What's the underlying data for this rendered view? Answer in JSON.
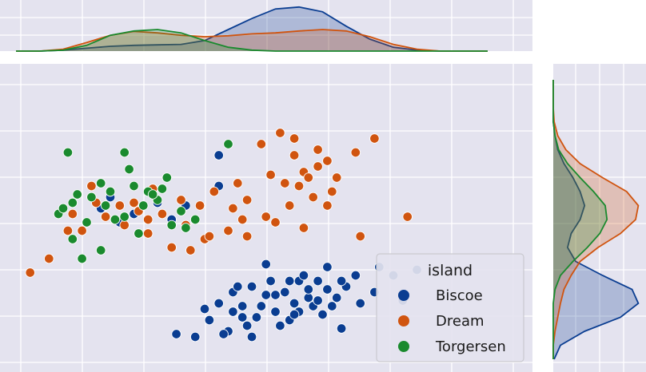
{
  "chart_data": {
    "type": "scatter",
    "kind": "jointplot",
    "title": "",
    "xlabel": "",
    "ylabel": "",
    "xlim": [
      0.0,
      10.0
    ],
    "ylim": [
      0.0,
      10.0
    ],
    "grid": true,
    "legend": {
      "title": "island",
      "position": "bottom-right"
    },
    "colors": {
      "Biscoe": "#0a3d91",
      "Dream": "#d0540f",
      "Torgersen": "#1a8a2e",
      "panel_bg": "#e4e3ef",
      "grid": "#ffffff"
    },
    "series": [
      {
        "name": "Biscoe",
        "color": "#0a3d91",
        "points": [
          [
            2.0,
            5.8
          ],
          [
            2.5,
            5.2
          ],
          [
            3.0,
            5.6
          ],
          [
            3.3,
            5.0
          ],
          [
            2.2,
            4.9
          ],
          [
            1.8,
            5.4
          ],
          [
            3.6,
            5.5
          ],
          [
            4.3,
            6.2
          ],
          [
            4.3,
            7.3
          ],
          [
            5.3,
            3.4
          ],
          [
            6.0,
            2.8
          ],
          [
            5.0,
            2.6
          ],
          [
            4.6,
            1.7
          ],
          [
            5.8,
            1.4
          ],
          [
            4.8,
            1.5
          ],
          [
            5.5,
            2.3
          ],
          [
            6.0,
            1.7
          ],
          [
            6.8,
            2.2
          ],
          [
            7.3,
            2.0
          ],
          [
            7.6,
            2.4
          ],
          [
            7.2,
            3.0
          ],
          [
            7.7,
            3.3
          ],
          [
            8.5,
            3.2
          ],
          [
            8.0,
            3.0
          ],
          [
            8.2,
            2.1
          ],
          [
            6.9,
            1.1
          ],
          [
            6.5,
            1.6
          ],
          [
            4.0,
            1.8
          ],
          [
            4.5,
            1.0
          ],
          [
            5.0,
            0.8
          ],
          [
            3.4,
            0.9
          ],
          [
            3.8,
            0.8
          ],
          [
            4.3,
            2.0
          ],
          [
            4.6,
            2.4
          ],
          [
            5.2,
            1.9
          ],
          [
            5.4,
            2.8
          ],
          [
            5.7,
            2.4
          ],
          [
            6.2,
            2.2
          ],
          [
            6.4,
            2.8
          ],
          [
            6.6,
            2.5
          ],
          [
            6.3,
            1.9
          ],
          [
            5.9,
            2.0
          ],
          [
            5.1,
            1.5
          ],
          [
            4.9,
            1.2
          ],
          [
            5.6,
            1.2
          ],
          [
            6.7,
            1.9
          ],
          [
            7.0,
            2.6
          ],
          [
            6.1,
            3.0
          ],
          [
            5.8,
            2.8
          ],
          [
            5.3,
            2.3
          ],
          [
            4.8,
            1.9
          ],
          [
            4.1,
            1.4
          ],
          [
            4.4,
            0.9
          ],
          [
            5.9,
            1.6
          ],
          [
            6.6,
            3.3
          ],
          [
            6.2,
            2.5
          ],
          [
            6.9,
            2.8
          ],
          [
            6.4,
            2.1
          ],
          [
            5.5,
            1.7
          ],
          [
            4.7,
            2.6
          ]
        ]
      },
      {
        "name": "Dream",
        "color": "#d0540f",
        "points": [
          [
            0.3,
            3.1
          ],
          [
            0.7,
            3.6
          ],
          [
            1.1,
            4.6
          ],
          [
            2.0,
            6.0
          ],
          [
            2.5,
            5.6
          ],
          [
            2.8,
            4.5
          ],
          [
            3.3,
            4.0
          ],
          [
            3.6,
            4.8
          ],
          [
            4.0,
            4.3
          ],
          [
            3.7,
            3.9
          ],
          [
            1.6,
            6.2
          ],
          [
            1.4,
            4.6
          ],
          [
            2.3,
            4.8
          ],
          [
            3.1,
            5.2
          ],
          [
            3.5,
            5.7
          ],
          [
            4.6,
            5.4
          ],
          [
            4.2,
            6.0
          ],
          [
            4.9,
            4.4
          ],
          [
            5.3,
            5.1
          ],
          [
            4.5,
            4.6
          ],
          [
            4.9,
            5.7
          ],
          [
            5.2,
            7.7
          ],
          [
            5.6,
            8.1
          ],
          [
            5.9,
            7.9
          ],
          [
            6.4,
            7.5
          ],
          [
            6.1,
            6.7
          ],
          [
            5.7,
            6.3
          ],
          [
            5.5,
            4.9
          ],
          [
            6.1,
            4.7
          ],
          [
            6.6,
            5.5
          ],
          [
            6.3,
            5.8
          ],
          [
            6.8,
            6.5
          ],
          [
            7.2,
            7.4
          ],
          [
            7.6,
            7.9
          ],
          [
            8.3,
            5.1
          ],
          [
            7.3,
            4.4
          ],
          [
            6.6,
            7.1
          ],
          [
            6.0,
            6.2
          ],
          [
            5.8,
            5.5
          ],
          [
            4.8,
            5.0
          ],
          [
            4.1,
            4.4
          ],
          [
            1.9,
            5.1
          ],
          [
            2.6,
            5.3
          ],
          [
            2.9,
            6.1
          ],
          [
            1.2,
            5.2
          ],
          [
            1.7,
            5.6
          ],
          [
            6.2,
            6.5
          ],
          [
            6.7,
            6.0
          ],
          [
            5.4,
            6.6
          ],
          [
            4.7,
            6.3
          ],
          [
            3.9,
            5.5
          ],
          [
            2.2,
            5.5
          ],
          [
            2.8,
            5.0
          ],
          [
            5.9,
            7.3
          ],
          [
            6.4,
            6.9
          ]
        ]
      },
      {
        "name": "Torgersen",
        "color": "#1a8a2e",
        "points": [
          [
            1.1,
            7.4
          ],
          [
            2.3,
            7.4
          ],
          [
            0.9,
            5.2
          ],
          [
            1.2,
            5.6
          ],
          [
            1.6,
            5.8
          ],
          [
            2.4,
            6.8
          ],
          [
            1.8,
            6.3
          ],
          [
            2.8,
            6.0
          ],
          [
            3.2,
            6.5
          ],
          [
            3.5,
            5.3
          ],
          [
            3.8,
            5.0
          ],
          [
            4.5,
            7.7
          ],
          [
            1.2,
            4.3
          ],
          [
            1.4,
            3.6
          ],
          [
            1.8,
            3.9
          ],
          [
            2.6,
            4.5
          ],
          [
            3.0,
            5.7
          ],
          [
            2.1,
            5.0
          ],
          [
            1.5,
            4.9
          ],
          [
            2.3,
            5.1
          ],
          [
            3.3,
            4.8
          ],
          [
            3.6,
            4.7
          ],
          [
            2.7,
            5.5
          ],
          [
            1.9,
            5.5
          ],
          [
            1.3,
            5.9
          ],
          [
            2.5,
            6.2
          ],
          [
            1.0,
            5.4
          ],
          [
            3.1,
            6.1
          ],
          [
            2.0,
            6.0
          ],
          [
            2.9,
            5.9
          ]
        ]
      }
    ],
    "marginal_x": [
      {
        "name": "Biscoe",
        "x": [
          0.0,
          0.5,
          1.0,
          1.5,
          2.0,
          2.5,
          3.0,
          3.5,
          4.0,
          4.5,
          5.0,
          5.5,
          6.0,
          6.5,
          7.0,
          7.5,
          8.0,
          8.5,
          9.0,
          9.5,
          10.0
        ],
        "density": [
          0.0,
          0.0,
          0.02,
          0.06,
          0.1,
          0.12,
          0.13,
          0.14,
          0.22,
          0.45,
          0.68,
          0.88,
          0.92,
          0.82,
          0.52,
          0.25,
          0.08,
          0.02,
          0.0,
          0.0,
          0.0
        ]
      },
      {
        "name": "Dream",
        "x": [
          0.0,
          0.5,
          1.0,
          1.5,
          2.0,
          2.5,
          3.0,
          3.5,
          4.0,
          4.5,
          5.0,
          5.5,
          6.0,
          6.5,
          7.0,
          7.5,
          8.0,
          8.5,
          9.0,
          9.5,
          10.0
        ],
        "density": [
          0.0,
          0.0,
          0.04,
          0.18,
          0.33,
          0.41,
          0.38,
          0.33,
          0.3,
          0.32,
          0.36,
          0.38,
          0.42,
          0.45,
          0.42,
          0.3,
          0.14,
          0.04,
          0.0,
          0.0,
          0.0
        ]
      },
      {
        "name": "Torgersen",
        "x": [
          0.0,
          0.5,
          1.0,
          1.5,
          2.0,
          2.5,
          3.0,
          3.5,
          4.0,
          4.5,
          5.0,
          5.5,
          6.0,
          6.5,
          7.0,
          7.5,
          8.0,
          8.5,
          9.0,
          9.5,
          10.0
        ],
        "density": [
          0.0,
          0.0,
          0.02,
          0.12,
          0.33,
          0.42,
          0.45,
          0.38,
          0.22,
          0.08,
          0.02,
          0.0,
          0.0,
          0.0,
          0.0,
          0.0,
          0.0,
          0.0,
          0.0,
          0.0,
          0.0
        ]
      }
    ],
    "marginal_y": [
      {
        "name": "Biscoe",
        "y": [
          0.0,
          0.5,
          1.0,
          1.5,
          2.0,
          2.5,
          3.0,
          3.5,
          4.0,
          4.5,
          5.0,
          5.5,
          6.0,
          6.5,
          7.0,
          7.5,
          8.0,
          8.5,
          9.0,
          9.5,
          10.0
        ],
        "density": [
          0.01,
          0.08,
          0.35,
          0.75,
          0.95,
          0.88,
          0.55,
          0.25,
          0.16,
          0.2,
          0.3,
          0.35,
          0.3,
          0.22,
          0.12,
          0.05,
          0.02,
          0.0,
          0.0,
          0.0,
          0.0
        ]
      },
      {
        "name": "Dream",
        "y": [
          0.0,
          0.5,
          1.0,
          1.5,
          2.0,
          2.5,
          3.0,
          3.5,
          4.0,
          4.5,
          5.0,
          5.5,
          6.0,
          6.5,
          7.0,
          7.5,
          8.0,
          8.5,
          9.0,
          9.5,
          10.0
        ],
        "density": [
          0.0,
          0.0,
          0.02,
          0.05,
          0.08,
          0.12,
          0.2,
          0.3,
          0.5,
          0.75,
          0.92,
          0.95,
          0.82,
          0.55,
          0.3,
          0.14,
          0.05,
          0.01,
          0.0,
          0.0,
          0.0
        ]
      },
      {
        "name": "Torgersen",
        "y": [
          0.0,
          0.5,
          1.0,
          1.5,
          2.0,
          2.5,
          3.0,
          3.5,
          4.0,
          4.5,
          5.0,
          5.5,
          6.0,
          6.5,
          7.0,
          7.5,
          8.0,
          8.5,
          9.0,
          9.5,
          10.0
        ],
        "density": [
          0.0,
          0.0,
          0.0,
          0.0,
          0.0,
          0.02,
          0.08,
          0.22,
          0.38,
          0.52,
          0.6,
          0.58,
          0.45,
          0.3,
          0.16,
          0.06,
          0.02,
          0.0,
          0.0,
          0.0,
          0.0
        ]
      }
    ]
  }
}
